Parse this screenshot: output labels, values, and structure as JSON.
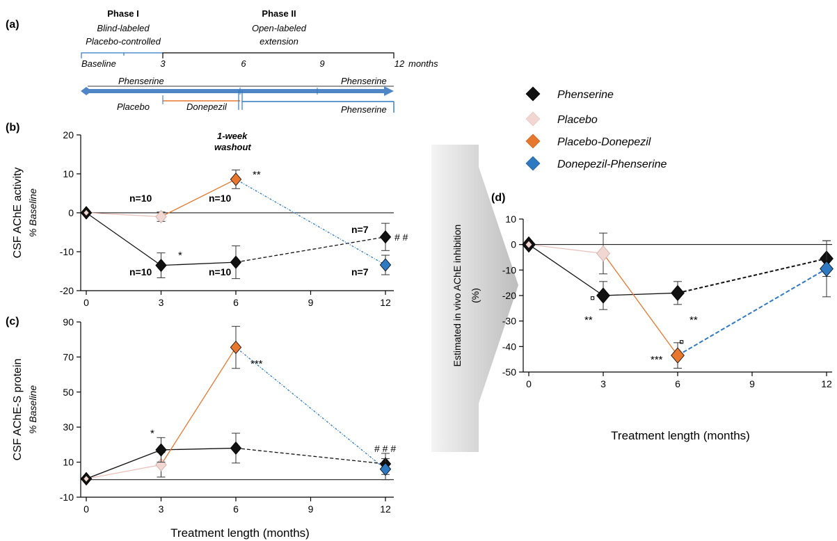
{
  "panels": {
    "a": {
      "label": "(a)",
      "phase1": {
        "title": "Phase I",
        "line1": "Blind-labeled",
        "line2": "Placebo-controlled"
      },
      "phase2": {
        "title": "Phase II",
        "line1": "Open-labeled",
        "line2": "extension"
      },
      "timeline_ticks": [
        "Baseline",
        "3",
        "6",
        "9",
        "12"
      ],
      "timeline_unit": "months",
      "arm_labels": {
        "phenserine_left": "Phenserine",
        "phenserine_right": "Phenserine",
        "placebo": "Placebo",
        "donepezil": "Donepezil",
        "phenserine_lower": "Phenserine"
      }
    },
    "b": {
      "label": "(b)"
    },
    "c": {
      "label": "(c)"
    },
    "d": {
      "label": "(d)"
    }
  },
  "legend": [
    {
      "label": "Phenserine",
      "color": "#111111"
    },
    {
      "label": "Placebo",
      "color": "#f2d6d2"
    },
    {
      "label": "Placebo-Donepezil",
      "color": "#e8772e"
    },
    {
      "label": "Donepezil-Phenserine",
      "color": "#2f79c3"
    }
  ],
  "chart_data": [
    {
      "id": "b",
      "type": "line",
      "ylabel": "CSF AChE activity",
      "ylabel_sub": "% Baseline",
      "xlabel": "",
      "xlim": [
        0,
        12.5
      ],
      "ylim": [
        -20,
        20
      ],
      "xticks": [
        0,
        3,
        6,
        9,
        12
      ],
      "yticks": [
        -20,
        -10,
        0,
        10,
        20
      ],
      "series": [
        {
          "name": "Phenserine",
          "x": [
            0,
            3,
            6,
            12
          ],
          "y": [
            0,
            -13.5,
            -12.7,
            -6.2
          ],
          "err": [
            0,
            3.2,
            4.2,
            3.5
          ],
          "color": "#111111"
        },
        {
          "name": "Placebo",
          "x": [
            0,
            3
          ],
          "y": [
            0,
            -1
          ],
          "err": [
            0,
            1.2
          ],
          "color": "#f2d6d2"
        },
        {
          "name": "Placebo-Donepezil",
          "x": [
            3,
            6
          ],
          "y": [
            -1,
            8.6
          ],
          "err": [
            0,
            2.4
          ],
          "color": "#e8772e"
        },
        {
          "name": "Donepezil-Phenserine",
          "x": [
            6,
            12
          ],
          "y": [
            8.6,
            -13.4
          ],
          "err": [
            0,
            2.5
          ],
          "color": "#2f79c3"
        }
      ],
      "annotations": [
        "n=10",
        "n=10",
        "n=10",
        "n=10",
        "n=7",
        "n=7",
        "*",
        "**",
        "# #",
        "1-week",
        "washout"
      ]
    },
    {
      "id": "c",
      "type": "line",
      "ylabel": "CSF AChE-S protein",
      "ylabel_sub": "% Baseline",
      "xlabel": "Treatment length (months)",
      "xlim": [
        0,
        12.5
      ],
      "ylim": [
        -10,
        90
      ],
      "xticks": [
        0,
        3,
        6,
        9,
        12
      ],
      "yticks": [
        -10,
        10,
        30,
        50,
        70,
        90
      ],
      "series": [
        {
          "name": "Phenserine",
          "x": [
            0,
            3,
            6,
            12
          ],
          "y": [
            0.5,
            17,
            18,
            9
          ],
          "err": [
            0,
            7,
            8.5,
            6
          ],
          "color": "#111111"
        },
        {
          "name": "Placebo",
          "x": [
            0,
            3
          ],
          "y": [
            0.5,
            8.5
          ],
          "err": [
            0,
            7
          ],
          "color": "#f2d6d2"
        },
        {
          "name": "Placebo-Donepezil",
          "x": [
            3,
            6
          ],
          "y": [
            8.5,
            75.5
          ],
          "err": [
            0,
            12
          ],
          "color": "#e8772e"
        },
        {
          "name": "Donepezil-Phenserine",
          "x": [
            6,
            12
          ],
          "y": [
            75.5,
            6
          ],
          "err": [
            0,
            6
          ],
          "color": "#2f79c3"
        }
      ],
      "annotations": [
        "*",
        "***",
        "# # #"
      ]
    },
    {
      "id": "d",
      "type": "line",
      "ylabel": "Estimated in vivo AChE inhibition",
      "ylabel_sub": "(%)",
      "xlabel": "Treatment length (months)",
      "xlim": [
        0,
        12.5
      ],
      "ylim": [
        -50,
        10
      ],
      "xticks": [
        0,
        3,
        6,
        9,
        12
      ],
      "yticks": [
        -50,
        -40,
        -30,
        -20,
        -10,
        0,
        10
      ],
      "series": [
        {
          "name": "Phenserine",
          "x": [
            0,
            3,
            6,
            12
          ],
          "y": [
            0,
            -20,
            -19,
            -5.5
          ],
          "err": [
            0,
            5.5,
            4.5,
            7
          ],
          "color": "#111111"
        },
        {
          "name": "Placebo",
          "x": [
            0,
            3
          ],
          "y": [
            0,
            -3.5
          ],
          "err": [
            0,
            8
          ],
          "color": "#f2d6d2"
        },
        {
          "name": "Placebo-Donepezil",
          "x": [
            3,
            6
          ],
          "y": [
            -3.5,
            -43.5
          ],
          "err": [
            0,
            5
          ],
          "color": "#e8772e"
        },
        {
          "name": "Donepezil-Phenserine",
          "x": [
            6,
            12
          ],
          "y": [
            -43.5,
            -9.5
          ],
          "err": [
            0,
            11
          ],
          "color": "#2f79c3"
        }
      ],
      "annotations": [
        "**",
        "**",
        "***",
        "¤",
        "¤"
      ]
    }
  ]
}
